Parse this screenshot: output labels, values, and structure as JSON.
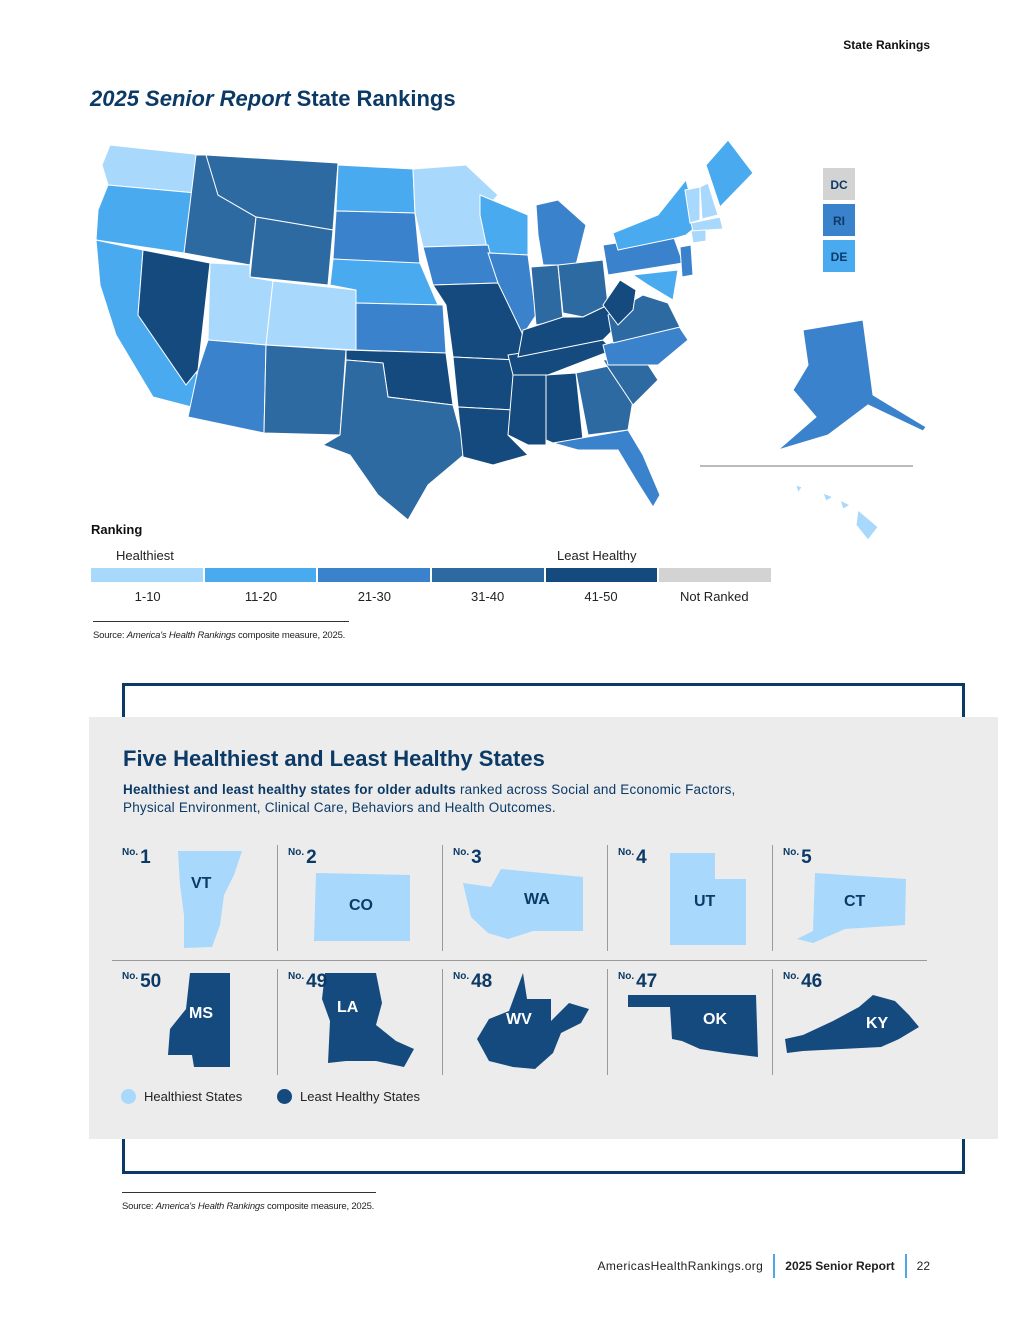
{
  "running_head": "State Rankings",
  "title": {
    "italic": "2025 Senior Report",
    "rest": "State Rankings"
  },
  "colors": {
    "r1_10": "#a8d8fb",
    "r11_20": "#4aaaf0",
    "r21_30": "#3b82cc",
    "r31_40": "#2e6aa2",
    "r41_50": "#154a7e",
    "not_ranked": "#d3d3d3",
    "navy": "#0c3a66"
  },
  "small_states": [
    {
      "abbr": "DC",
      "band": "not_ranked"
    },
    {
      "abbr": "RI",
      "band": "r21_30"
    },
    {
      "abbr": "DE",
      "band": "r11_20"
    }
  ],
  "legend": {
    "title": "Ranking",
    "left_end": "Healthiest",
    "right_end": "Least Healthy",
    "bands": [
      "1-10",
      "11-20",
      "21-30",
      "31-40",
      "41-50",
      "Not Ranked"
    ]
  },
  "source": {
    "prefix": "Source: ",
    "italic": "America's Health Rankings",
    "rest": " composite measure, 2025."
  },
  "box": {
    "title": "Five Healthiest and Least Healthy States",
    "sub_bold": "Healthiest and least healthy states for older adults",
    "sub_rest": " ranked across Social and Economic Factors, Physical Environment, Clinical Care, Behaviors and Health Outcomes.",
    "no_label": "No.",
    "healthiest": [
      {
        "rank": "1",
        "abbr": "VT"
      },
      {
        "rank": "2",
        "abbr": "CO"
      },
      {
        "rank": "3",
        "abbr": "WA"
      },
      {
        "rank": "4",
        "abbr": "UT"
      },
      {
        "rank": "5",
        "abbr": "CT"
      }
    ],
    "least_healthy": [
      {
        "rank": "50",
        "abbr": "MS"
      },
      {
        "rank": "49",
        "abbr": "LA"
      },
      {
        "rank": "48",
        "abbr": "WV"
      },
      {
        "rank": "47",
        "abbr": "OK"
      },
      {
        "rank": "46",
        "abbr": "KY"
      }
    ],
    "key_healthiest": "Healthiest States",
    "key_least": "Least Healthy States"
  },
  "footer": {
    "url": "AmericasHealthRankings.org",
    "report": "2025 Senior Report",
    "page": "22"
  }
}
